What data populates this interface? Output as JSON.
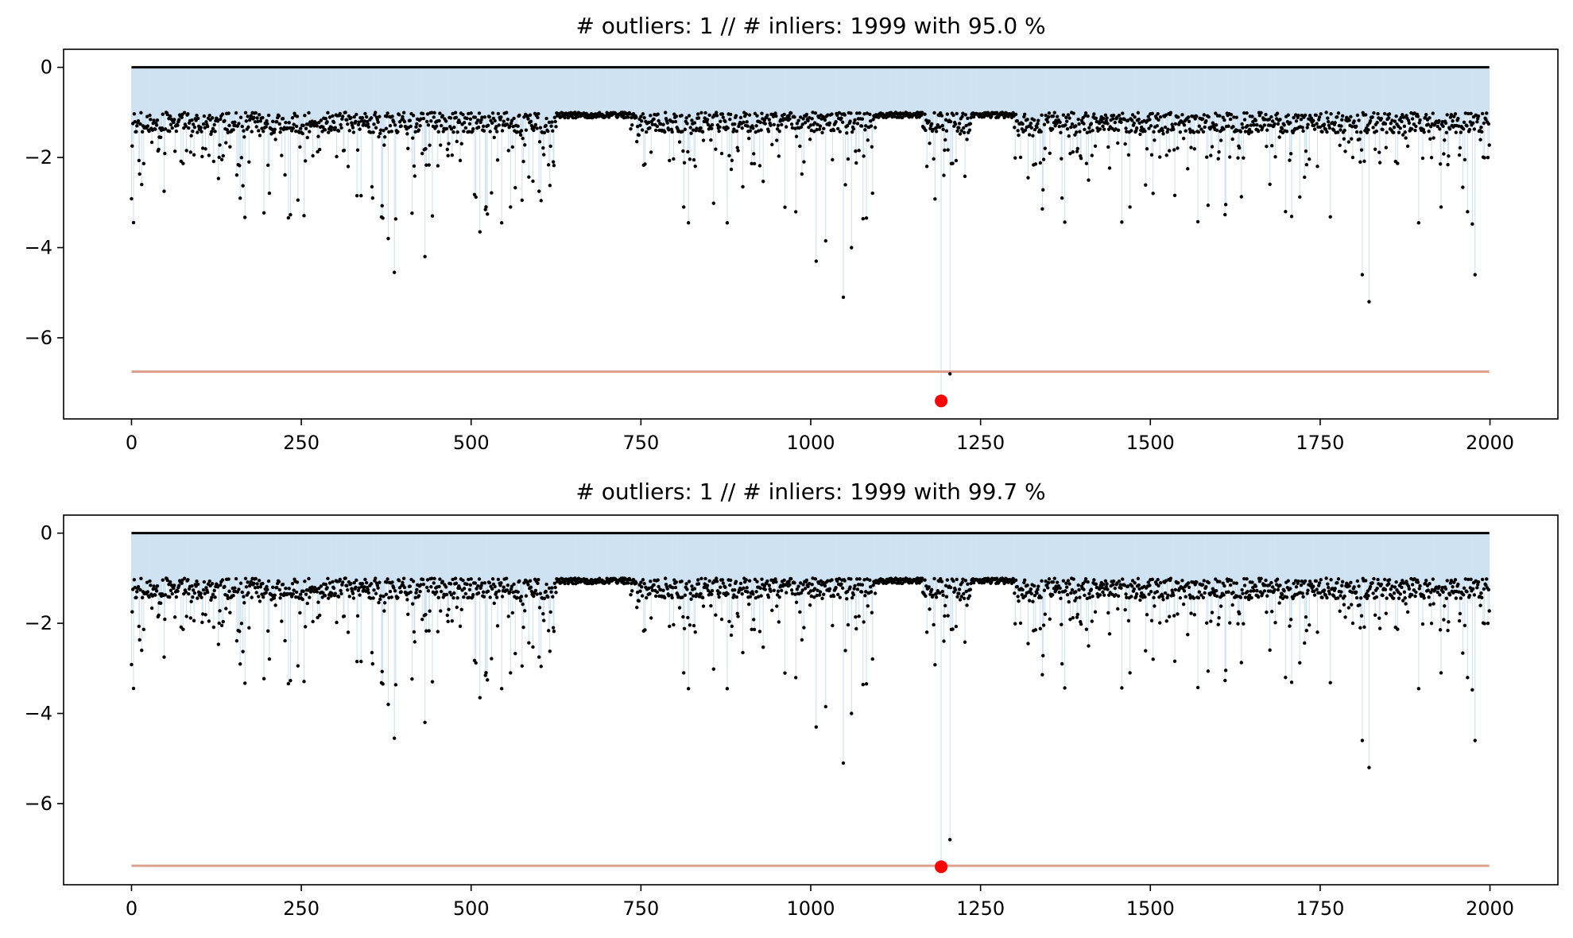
{
  "colors": {
    "background": "#ffffff",
    "axes": "#000000",
    "zero_line": "#000000",
    "stems": "#cfe2f1",
    "points": "#000000",
    "threshold_line": "#e0a090",
    "outlier": "#ff0000"
  },
  "chart_data": [
    {
      "type": "scatter",
      "title": "# outliers: 1 // # inliers: 1999 with 95.0 %",
      "xlabel": "",
      "ylabel": "",
      "xlim": [
        -100,
        2100
      ],
      "ylim": [
        -7.8,
        0.4
      ],
      "xticks": [
        0,
        250,
        500,
        750,
        1000,
        1250,
        1500,
        1750,
        2000
      ],
      "yticks": [
        0,
        -2,
        -4,
        -6
      ],
      "grid": false,
      "n_points": 2000,
      "threshold": -6.75,
      "baseline": 0,
      "outliers": [
        {
          "x": 1192,
          "y": -7.4
        }
      ],
      "notable_points": [
        {
          "x": 15,
          "y": -2.6
        },
        {
          "x": 48,
          "y": -2.75
        },
        {
          "x": 173,
          "y": -2.1
        },
        {
          "x": 355,
          "y": -2.9
        },
        {
          "x": 378,
          "y": -3.8
        },
        {
          "x": 387,
          "y": -4.55
        },
        {
          "x": 432,
          "y": -4.2
        },
        {
          "x": 513,
          "y": -3.65
        },
        {
          "x": 545,
          "y": -3.45
        },
        {
          "x": 558,
          "y": -3.1
        },
        {
          "x": 600,
          "y": -2.75
        },
        {
          "x": 813,
          "y": -3.1
        },
        {
          "x": 820,
          "y": -3.45
        },
        {
          "x": 877,
          "y": -3.45
        },
        {
          "x": 1008,
          "y": -4.3
        },
        {
          "x": 1022,
          "y": -3.85
        },
        {
          "x": 1048,
          "y": -5.1
        },
        {
          "x": 1060,
          "y": -4.0
        },
        {
          "x": 1192,
          "y": -5.1
        },
        {
          "x": 1205,
          "y": -6.8
        },
        {
          "x": 1320,
          "y": -2.45
        },
        {
          "x": 1370,
          "y": -2.9
        },
        {
          "x": 1555,
          "y": -2.25
        },
        {
          "x": 1812,
          "y": -4.6
        },
        {
          "x": 1822,
          "y": -5.2
        },
        {
          "x": 1895,
          "y": -3.45
        },
        {
          "x": 1928,
          "y": -3.1
        },
        {
          "x": 1978,
          "y": -4.6
        }
      ]
    },
    {
      "type": "scatter",
      "title": "# outliers: 1 // # inliers: 1999 with 99.7 %",
      "xlabel": "",
      "ylabel": "",
      "xlim": [
        -100,
        2100
      ],
      "ylim": [
        -7.8,
        0.4
      ],
      "xticks": [
        0,
        250,
        500,
        750,
        1000,
        1250,
        1500,
        1750,
        2000
      ],
      "yticks": [
        0,
        -2,
        -4,
        -6
      ],
      "grid": false,
      "n_points": 2000,
      "threshold": -7.38,
      "baseline": 0,
      "outliers": [
        {
          "x": 1192,
          "y": -7.4
        }
      ],
      "notable_points": [
        {
          "x": 15,
          "y": -2.6
        },
        {
          "x": 48,
          "y": -2.75
        },
        {
          "x": 173,
          "y": -2.1
        },
        {
          "x": 355,
          "y": -2.9
        },
        {
          "x": 378,
          "y": -3.8
        },
        {
          "x": 387,
          "y": -4.55
        },
        {
          "x": 432,
          "y": -4.2
        },
        {
          "x": 513,
          "y": -3.65
        },
        {
          "x": 545,
          "y": -3.45
        },
        {
          "x": 558,
          "y": -3.1
        },
        {
          "x": 600,
          "y": -2.75
        },
        {
          "x": 813,
          "y": -3.1
        },
        {
          "x": 820,
          "y": -3.45
        },
        {
          "x": 877,
          "y": -3.45
        },
        {
          "x": 1008,
          "y": -4.3
        },
        {
          "x": 1022,
          "y": -3.85
        },
        {
          "x": 1048,
          "y": -5.1
        },
        {
          "x": 1060,
          "y": -4.0
        },
        {
          "x": 1192,
          "y": -5.1
        },
        {
          "x": 1205,
          "y": -6.8
        },
        {
          "x": 1320,
          "y": -2.45
        },
        {
          "x": 1370,
          "y": -2.9
        },
        {
          "x": 1555,
          "y": -2.25
        },
        {
          "x": 1812,
          "y": -4.6
        },
        {
          "x": 1822,
          "y": -5.2
        },
        {
          "x": 1895,
          "y": -3.45
        },
        {
          "x": 1928,
          "y": -3.1
        },
        {
          "x": 1978,
          "y": -4.6
        }
      ]
    }
  ]
}
